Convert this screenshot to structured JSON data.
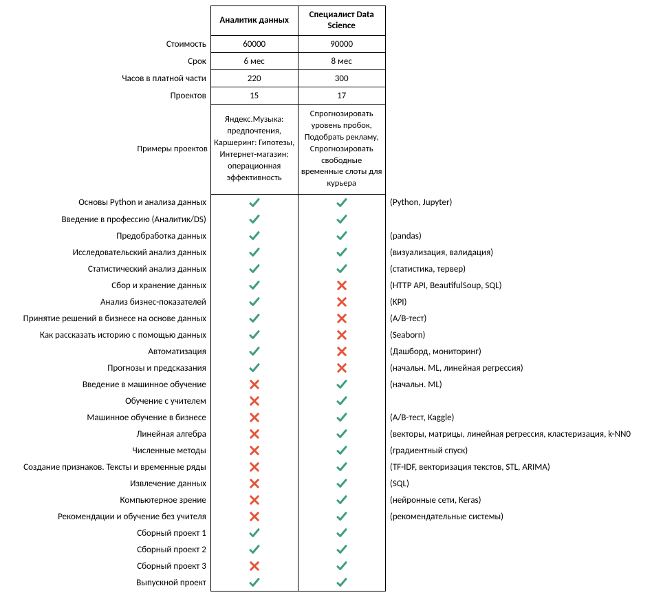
{
  "colors": {
    "check": "#3f9d82",
    "cross": "#e5543a",
    "border": "#000000",
    "background": "#ffffff",
    "text": "#000000"
  },
  "headers": {
    "col1": "Аналитик данных",
    "col2": "Специалист Data Science"
  },
  "summary": [
    {
      "label": "Стоимость",
      "c1": "60000",
      "c2": "90000"
    },
    {
      "label": "Срок",
      "c1": "6 мес",
      "c2": "8 мес"
    },
    {
      "label": "Часов в платной части",
      "c1": "220",
      "c2": "300"
    },
    {
      "label": "Проектов",
      "c1": "15",
      "c2": "17"
    }
  ],
  "examples": {
    "label": "Примеры проектов",
    "c1": "Яндекс.Музыка: предпочтения, Каршеринг: Гипотезы, Интернет-магазин: операционная эффективность",
    "c2": "Спрогнозировать уровень пробок, Подобрать рекламу, Спрогнозировать свободные временные слоты для курьера"
  },
  "modules": [
    {
      "label": "Основы Python и анализа данных",
      "c1": true,
      "c2": true,
      "note": "(Python, Jupyter)"
    },
    {
      "label": "Введение в профессию (Аналитик/DS)",
      "c1": true,
      "c2": true,
      "note": ""
    },
    {
      "label": "Предобработка данных",
      "c1": true,
      "c2": true,
      "note": "(pandas)"
    },
    {
      "label": "Исследовательский анализ данных",
      "c1": true,
      "c2": true,
      "note": "(визуализация, валидация)"
    },
    {
      "label": "Статистический анализ данных",
      "c1": true,
      "c2": true,
      "note": "(статистика, тервер)"
    },
    {
      "label": "Сбор и хранение данных",
      "c1": true,
      "c2": false,
      "note": "(HTTP API, BeautifulSoup, SQL)"
    },
    {
      "label": "Анализ бизнес-показателей",
      "c1": true,
      "c2": false,
      "note": "(KPI)"
    },
    {
      "label": "Принятие решений в бизнесе на основе данных",
      "c1": true,
      "c2": false,
      "note": "(A/B-тест)"
    },
    {
      "label": "Как рассказать историю с помощью данных",
      "c1": true,
      "c2": false,
      "note": "(Seaborn)"
    },
    {
      "label": "Автоматизация",
      "c1": true,
      "c2": false,
      "note": "(Дашборд, мониторинг)"
    },
    {
      "label": "Прогнозы и предсказания",
      "c1": true,
      "c2": false,
      "note": "(начальн. ML, линейная регрессия)"
    },
    {
      "label": "Введение в машинное обучение",
      "c1": false,
      "c2": true,
      "note": "(начальн. ML)"
    },
    {
      "label": "Обучение с учителем",
      "c1": false,
      "c2": true,
      "note": ""
    },
    {
      "label": "Машинное обучение в бизнесе",
      "c1": false,
      "c2": true,
      "note": "(A/B-тест, Kaggle)"
    },
    {
      "label": "Линейная алгебра",
      "c1": false,
      "c2": true,
      "note": "(векторы, матрицы, линейная регрессия, кластеризация, k-NN0"
    },
    {
      "label": "Численные методы",
      "c1": false,
      "c2": true,
      "note": "(градиентный спуск)"
    },
    {
      "label": "Создание признаков. Тексты и временные ряды",
      "c1": false,
      "c2": true,
      "note": "(TF-IDF, векторизация текстов, STL, ARIMA)"
    },
    {
      "label": "Извлечение данных",
      "c1": false,
      "c2": true,
      "note": "(SQL)"
    },
    {
      "label": "Компьютерное зрение",
      "c1": false,
      "c2": true,
      "note": "(нейронные сети, Keras)"
    },
    {
      "label": "Рекомендации и обучение без учителя",
      "c1": false,
      "c2": true,
      "note": "(рекомендательные системы)"
    },
    {
      "label": "Сборный проект 1",
      "c1": true,
      "c2": true,
      "note": ""
    },
    {
      "label": "Сборный проект 2",
      "c1": true,
      "c2": true,
      "note": ""
    },
    {
      "label": "Сборный проект 3",
      "c1": false,
      "c2": true,
      "note": ""
    },
    {
      "label": "Выпускной проект",
      "c1": true,
      "c2": true,
      "note": ""
    }
  ]
}
